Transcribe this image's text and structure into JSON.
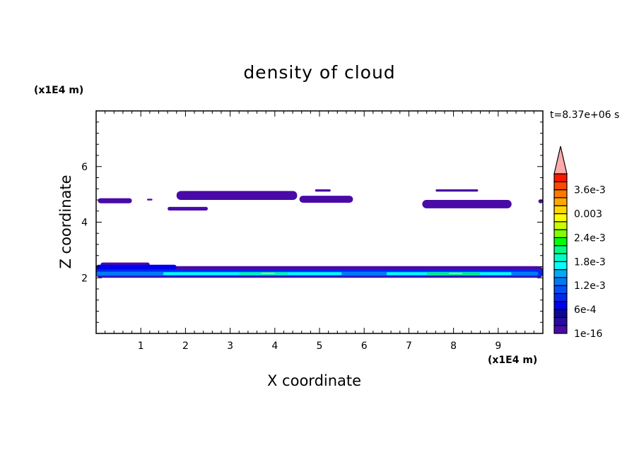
{
  "chart_data": {
    "type": "heatmap",
    "title": "density of cloud",
    "xlabel": "X coordinate",
    "ylabel": "Z coordinate",
    "x_unit": "(x1E4 m)",
    "y_unit": "(x1E4 m)",
    "time_label": "t=8.37e+06 s",
    "xlim": [
      0,
      10
    ],
    "ylim": [
      0,
      8
    ],
    "x_ticks": [
      1,
      2,
      3,
      4,
      5,
      6,
      7,
      8,
      9
    ],
    "y_ticks": [
      2,
      4,
      6
    ],
    "colorbar": {
      "levels": [
        1e-16,
        0.0002,
        0.0004,
        0.0006,
        0.0008,
        0.001,
        0.0012,
        0.0014,
        0.0016,
        0.0018,
        0.002,
        0.0022,
        0.0024,
        0.0026,
        0.0028,
        0.003,
        0.0032,
        0.0034,
        0.0036,
        0.0038,
        0.004
      ],
      "colors": [
        "#4a0aa8",
        "#2a0aa0",
        "#0a0a98",
        "#0000f0",
        "#0028f0",
        "#0050f8",
        "#0078f8",
        "#00a8f8",
        "#00ffff",
        "#00ffc8",
        "#00ff80",
        "#00ff00",
        "#80ff00",
        "#c8ff00",
        "#ffff00",
        "#ffd800",
        "#ffa800",
        "#ff7800",
        "#ff4800",
        "#ff1800",
        "#ff2828"
      ],
      "extend_color": "#ffaaaa",
      "tick_labels": [
        {
          "value": 1e-16,
          "label": "1e-16"
        },
        {
          "value": 0.0006,
          "label": "6e-4"
        },
        {
          "value": 0.0012,
          "label": "1.2e-3"
        },
        {
          "value": 0.0018,
          "label": "1.8e-3"
        },
        {
          "value": 0.0024,
          "label": "2.4e-3"
        },
        {
          "value": 0.003,
          "label": "0.003"
        },
        {
          "value": 0.0036,
          "label": "3.6e-3"
        }
      ]
    },
    "regions": [
      {
        "x": [
          0.04,
          0.8
        ],
        "z": [
          4.68,
          4.86
        ],
        "level": 0
      },
      {
        "x": [
          1.14,
          1.26
        ],
        "z": [
          4.78,
          4.84
        ],
        "level": 0
      },
      {
        "x": [
          1.8,
          4.5
        ],
        "z": [
          4.8,
          5.12
        ],
        "level": 0
      },
      {
        "x": [
          1.6,
          2.5
        ],
        "z": [
          4.42,
          4.55
        ],
        "level": 0
      },
      {
        "x": [
          4.55,
          5.75
        ],
        "z": [
          4.7,
          4.95
        ],
        "level": 0
      },
      {
        "x": [
          4.9,
          5.25
        ],
        "z": [
          5.1,
          5.18
        ],
        "level": 0
      },
      {
        "x": [
          7.6,
          8.55
        ],
        "z": [
          5.1,
          5.18
        ],
        "level": 0
      },
      {
        "x": [
          7.3,
          9.3
        ],
        "z": [
          4.5,
          4.8
        ],
        "level": 0
      },
      {
        "x": [
          9.9,
          10
        ],
        "z": [
          4.68,
          4.82
        ],
        "level": 0
      },
      {
        "x": [
          0,
          10
        ],
        "z": [
          2.0,
          2.42
        ],
        "level": 0
      },
      {
        "x": [
          0.1,
          1.2
        ],
        "z": [
          2.4,
          2.55
        ],
        "level": 0
      },
      {
        "x": [
          0,
          1.8
        ],
        "z": [
          2.3,
          2.47
        ],
        "level": 3
      },
      {
        "x": [
          0,
          10
        ],
        "z": [
          2.05,
          2.3
        ],
        "level": 4
      },
      {
        "x": [
          0,
          9.9
        ],
        "z": [
          2.08,
          2.22
        ],
        "level": 6
      },
      {
        "x": [
          1.5,
          5.5
        ],
        "z": [
          2.1,
          2.2
        ],
        "level": 8
      },
      {
        "x": [
          6.5,
          9.3
        ],
        "z": [
          2.1,
          2.2
        ],
        "level": 8
      },
      {
        "x": [
          3.2,
          4.3
        ],
        "z": [
          2.12,
          2.19
        ],
        "level": 10
      },
      {
        "x": [
          7.4,
          8.6
        ],
        "z": [
          2.12,
          2.18
        ],
        "level": 11
      },
      {
        "x": [
          3.7,
          4.0
        ],
        "z": [
          2.14,
          2.18
        ],
        "level": 13
      },
      {
        "x": [
          7.9,
          8.2
        ],
        "z": [
          2.14,
          2.17
        ],
        "level": 14
      }
    ]
  }
}
